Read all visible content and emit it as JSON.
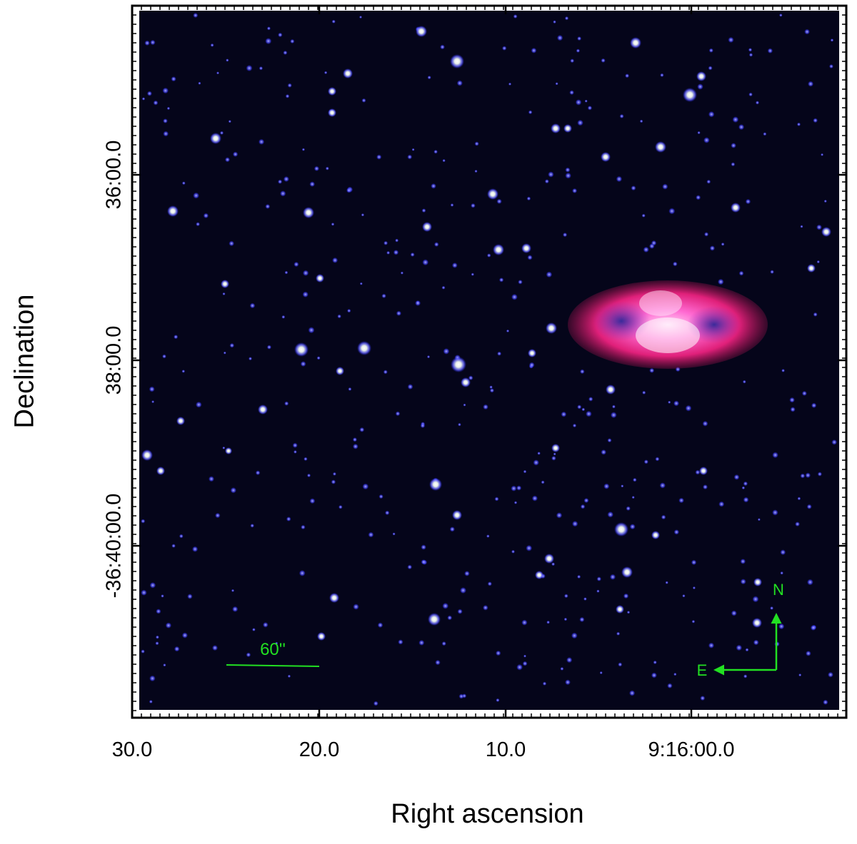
{
  "axes": {
    "xlabel": "Right ascension",
    "ylabel": "Declination",
    "x_ticks": [
      "30.0",
      "20.0",
      "10.0",
      "9:16:00.0"
    ],
    "y_ticks": [
      "36:00.0",
      "38:00.0",
      "-36:40:00.0"
    ]
  },
  "annotations": {
    "scale_bar_label": "60''",
    "north_label": "N",
    "east_label": "E",
    "annotation_color": "#22e022"
  },
  "colors": {
    "sky": "#05051a",
    "star_halo": "#3a3aff",
    "nebula_outer": "#e8226e",
    "nebula_inner": "#ff66cc"
  }
}
